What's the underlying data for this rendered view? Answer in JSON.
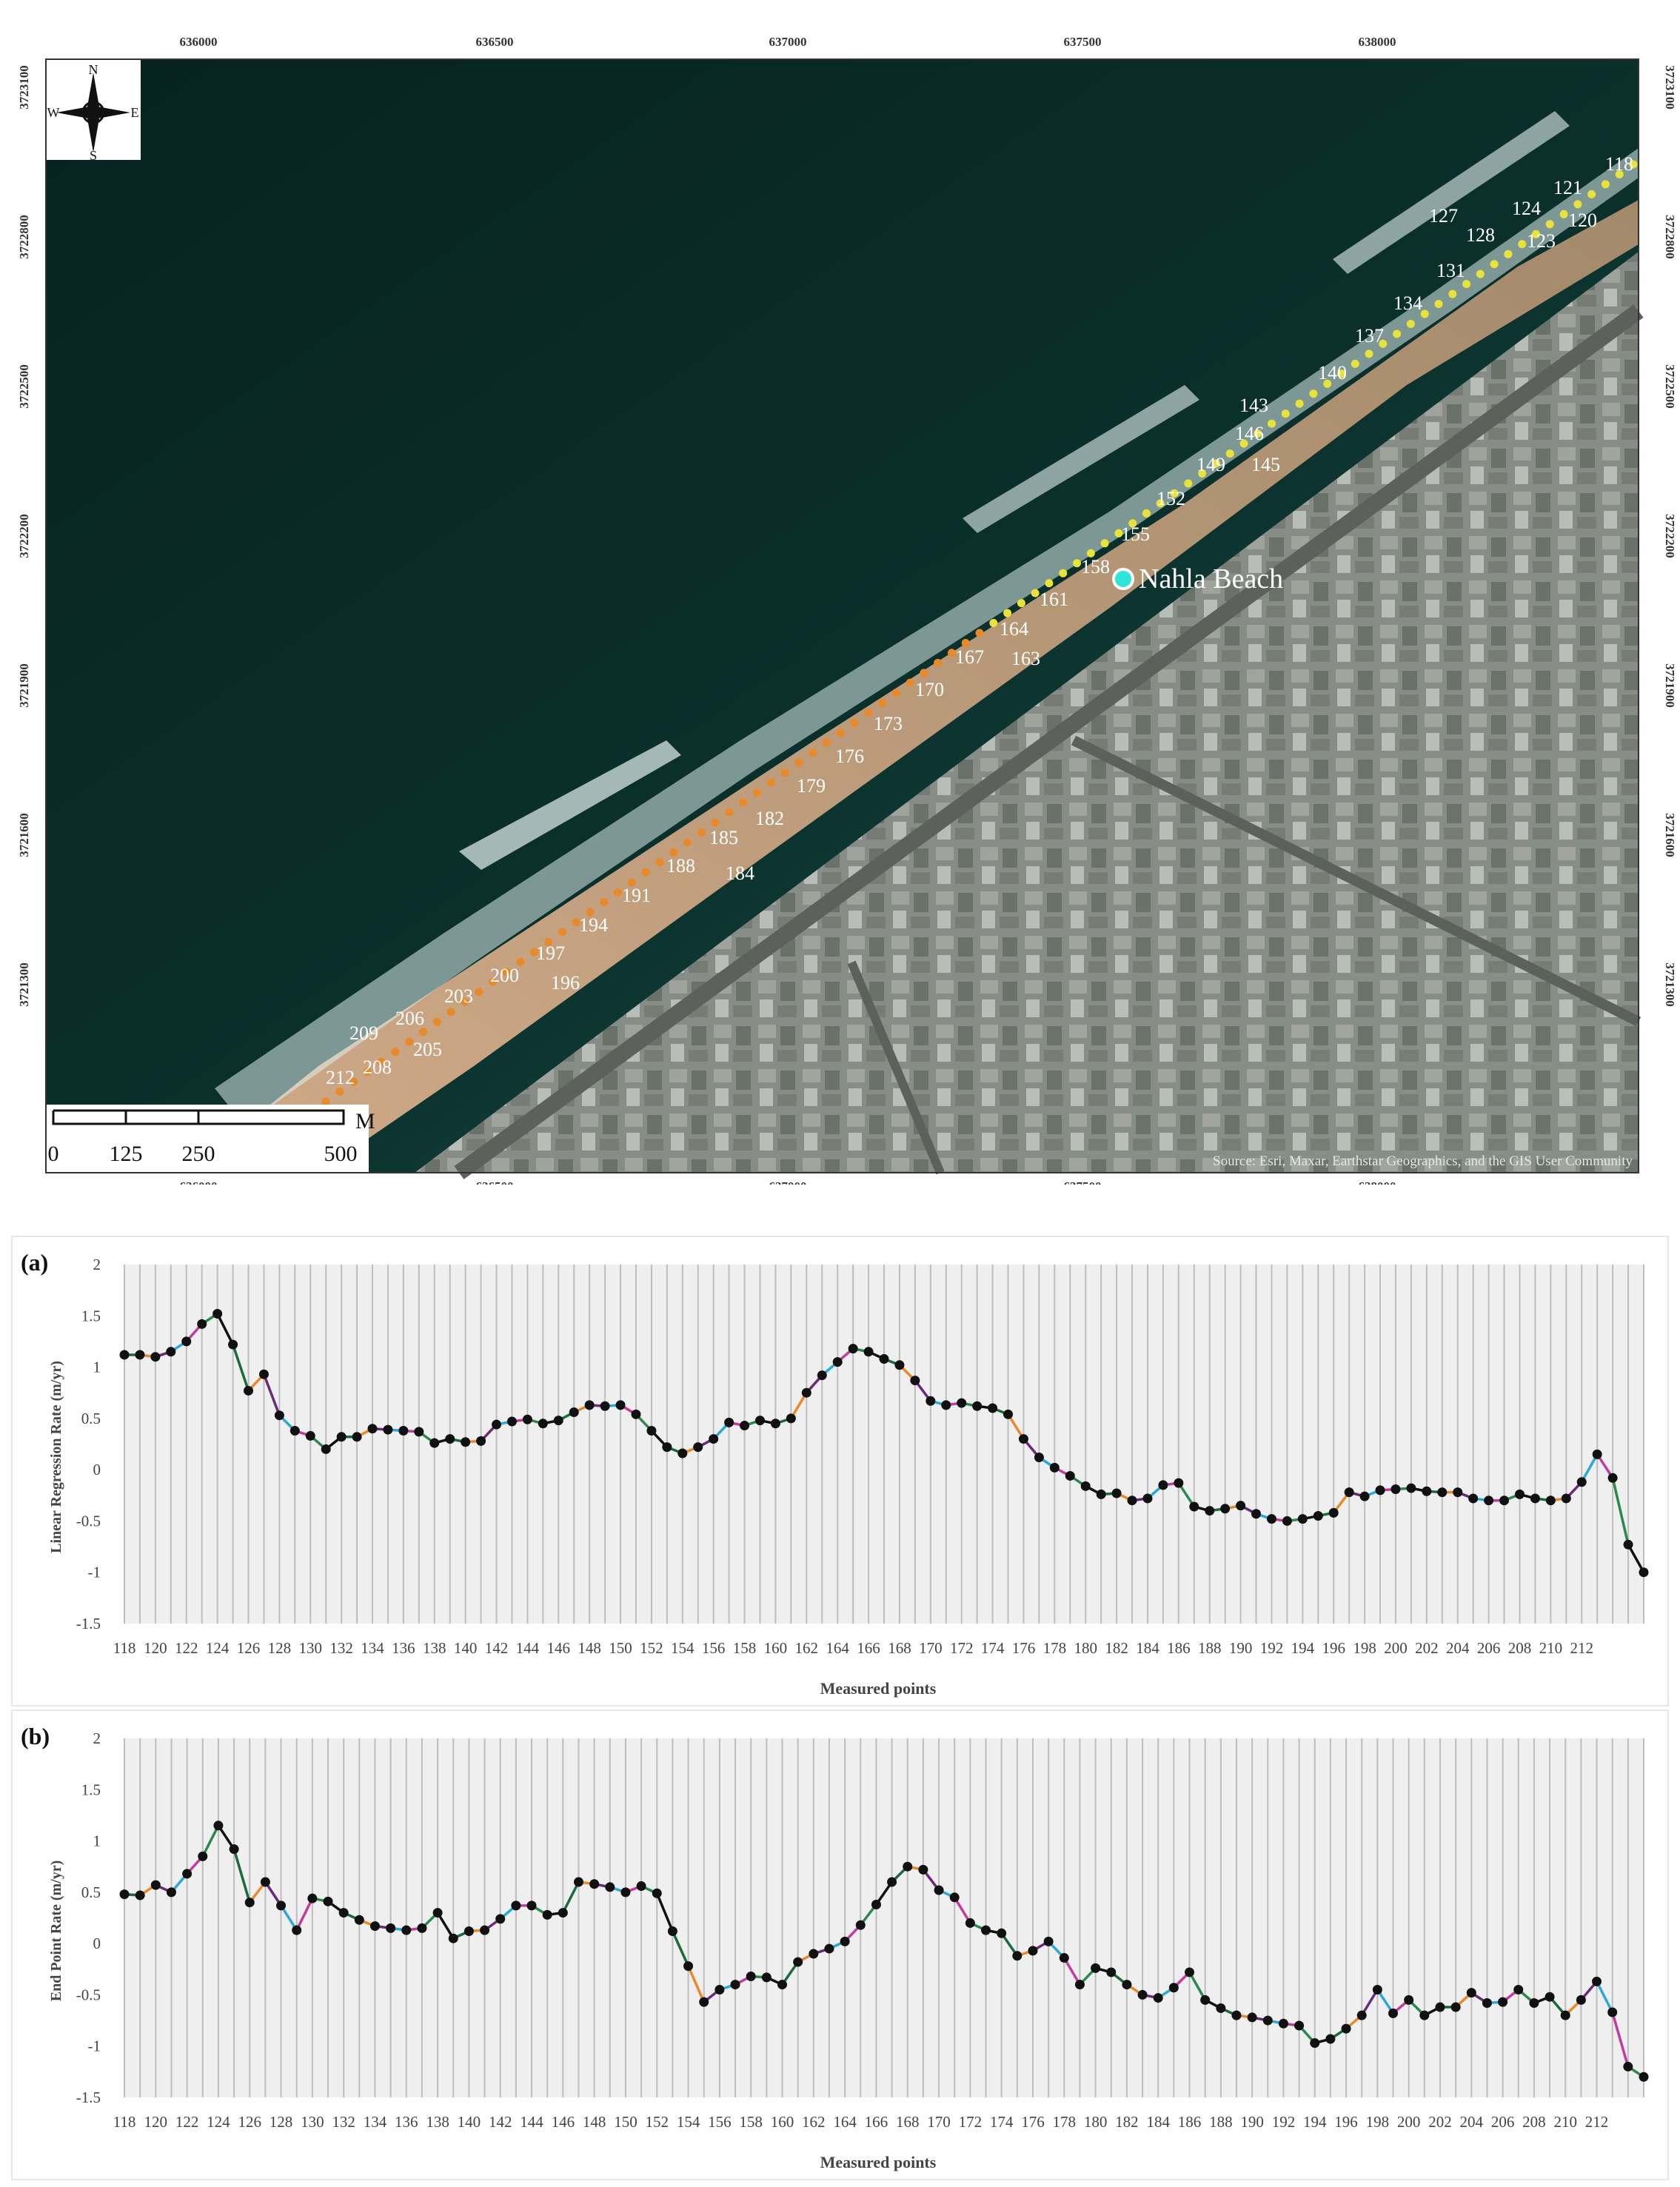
{
  "map": {
    "x_ticks": [
      "636000",
      "636500",
      "637000",
      "637500",
      "638000"
    ],
    "y_ticks": [
      "3723100",
      "3722800",
      "3722500",
      "3722200",
      "3721900",
      "3721600",
      "3721300"
    ],
    "compass": {
      "n": "N",
      "s": "S",
      "e": "E",
      "w": "W"
    },
    "scale_bar": {
      "labels": [
        "0",
        "125",
        "250",
        "500"
      ],
      "unit": "M"
    },
    "place_label": "Nahla Beach",
    "credit": "Source: Esri, Maxar, Earthstar Geographics, and the GIS User Community",
    "point_labels": [
      "118",
      "120",
      "121",
      "123",
      "124",
      "127",
      "128",
      "131",
      "134",
      "137",
      "140",
      "143",
      "145",
      "146",
      "149",
      "152",
      "155",
      "158",
      "161",
      "163",
      "164",
      "167",
      "170",
      "173",
      "176",
      "179",
      "182",
      "184",
      "185",
      "188",
      "191",
      "194",
      "196",
      "197",
      "200",
      "203",
      "205",
      "206",
      "208",
      "209",
      "212"
    ],
    "colors": {
      "sea_deep": "#0a2f2c",
      "sea_shallow": "#1f5a52",
      "surf": "#d6ece8",
      "sand": "#b59a78",
      "urban": "#8a8f86",
      "points_north": "#e8e23a",
      "points_south": "#e8892a",
      "place_marker": "#2ee6d6"
    }
  },
  "chart_data": [
    {
      "type": "line",
      "panel_label": "(a)",
      "ylabel": "Linear Regression Rate (m/yr)",
      "xlabel": "Measured points",
      "ylim": [
        -1.5,
        2
      ],
      "yticks": [
        "-1.5",
        "-1",
        "-0.5",
        "0",
        "0.5",
        "1",
        "1.5",
        "2"
      ],
      "xticks": [
        "118",
        "120",
        "122",
        "124",
        "126",
        "128",
        "130",
        "132",
        "134",
        "136",
        "138",
        "140",
        "142",
        "144",
        "146",
        "148",
        "150",
        "152",
        "154",
        "156",
        "158",
        "160",
        "162",
        "164",
        "166",
        "168",
        "170",
        "172",
        "174",
        "176",
        "178",
        "180",
        "182",
        "184",
        "186",
        "188",
        "190",
        "192",
        "194",
        "196",
        "198",
        "200",
        "202",
        "204",
        "206",
        "208",
        "210",
        "212"
      ],
      "x_start": 118,
      "values": [
        1.12,
        1.12,
        1.1,
        1.15,
        1.25,
        1.42,
        1.52,
        1.22,
        0.77,
        0.93,
        0.53,
        0.38,
        0.33,
        0.2,
        0.32,
        0.32,
        0.4,
        0.39,
        0.38,
        0.37,
        0.26,
        0.3,
        0.27,
        0.28,
        0.44,
        0.47,
        0.49,
        0.45,
        0.48,
        0.56,
        0.63,
        0.62,
        0.63,
        0.54,
        0.38,
        0.22,
        0.16,
        0.22,
        0.3,
        0.46,
        0.43,
        0.48,
        0.45,
        0.5,
        0.75,
        0.92,
        1.05,
        1.18,
        1.15,
        1.08,
        1.02,
        0.87,
        0.67,
        0.63,
        0.65,
        0.62,
        0.6,
        0.54,
        0.3,
        0.12,
        0.02,
        -0.06,
        -0.16,
        -0.24,
        -0.23,
        -0.3,
        -0.28,
        -0.15,
        -0.13,
        -0.36,
        -0.4,
        -0.38,
        -0.35,
        -0.43,
        -0.48,
        -0.5,
        -0.48,
        -0.45,
        -0.42,
        -0.22,
        -0.26,
        -0.2,
        -0.19,
        -0.18,
        -0.21,
        -0.22,
        -0.22,
        -0.28,
        -0.3,
        -0.3,
        -0.24,
        -0.28,
        -0.3,
        -0.28,
        -0.12,
        0.15,
        -0.08,
        -0.73,
        -1.0
      ]
    },
    {
      "type": "line",
      "panel_label": "(b)",
      "ylabel": "End Point Rate (m/yr)",
      "xlabel": "Measured points",
      "ylim": [
        -1.5,
        2
      ],
      "yticks": [
        "-1.5",
        "-1",
        "-0.5",
        "0",
        "0.5",
        "1",
        "1.5",
        "2"
      ],
      "xticks": [
        "118",
        "120",
        "122",
        "124",
        "126",
        "128",
        "130",
        "132",
        "134",
        "136",
        "138",
        "140",
        "142",
        "144",
        "146",
        "148",
        "150",
        "152",
        "154",
        "156",
        "158",
        "160",
        "162",
        "164",
        "166",
        "168",
        "170",
        "172",
        "174",
        "176",
        "178",
        "180",
        "182",
        "184",
        "186",
        "188",
        "190",
        "192",
        "194",
        "196",
        "198",
        "200",
        "202",
        "204",
        "206",
        "208",
        "210",
        "212"
      ],
      "x_start": 118,
      "values": [
        0.48,
        0.47,
        0.57,
        0.5,
        0.68,
        0.85,
        1.15,
        0.92,
        0.4,
        0.6,
        0.37,
        0.13,
        0.44,
        0.41,
        0.3,
        0.23,
        0.17,
        0.15,
        0.13,
        0.15,
        0.3,
        0.05,
        0.12,
        0.13,
        0.24,
        0.37,
        0.37,
        0.28,
        0.3,
        0.6,
        0.58,
        0.55,
        0.5,
        0.56,
        0.49,
        0.12,
        -0.22,
        -0.57,
        -0.45,
        -0.4,
        -0.32,
        -0.33,
        -0.4,
        -0.18,
        -0.1,
        -0.05,
        0.02,
        0.18,
        0.38,
        0.6,
        0.75,
        0.72,
        0.52,
        0.45,
        0.2,
        0.13,
        0.1,
        -0.12,
        -0.07,
        0.02,
        -0.14,
        -0.4,
        -0.24,
        -0.28,
        -0.4,
        -0.5,
        -0.53,
        -0.43,
        -0.28,
        -0.55,
        -0.63,
        -0.7,
        -0.72,
        -0.75,
        -0.78,
        -0.8,
        -0.97,
        -0.93,
        -0.83,
        -0.7,
        -0.45,
        -0.68,
        -0.55,
        -0.7,
        -0.62,
        -0.62,
        -0.48,
        -0.58,
        -0.57,
        -0.45,
        -0.58,
        -0.52,
        -0.7,
        -0.55,
        -0.37,
        -0.67,
        -1.2,
        -1.3
      ]
    }
  ]
}
